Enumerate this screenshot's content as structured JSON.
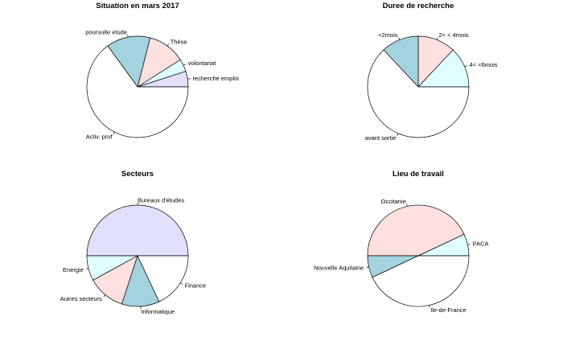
{
  "chart_data": [
    {
      "type": "pie",
      "title": "Situation en mars 2017",
      "slices": [
        {
          "label": "recherche emploi",
          "value": 5,
          "color": "#e0e0fb"
        },
        {
          "label": "volontariat",
          "value": 4,
          "color": "#e0ffff"
        },
        {
          "label": "Thèse",
          "value": 12,
          "color": "#fcdfdf"
        },
        {
          "label": "poursuite etude",
          "value": 14,
          "color": "#a4d3e0"
        },
        {
          "label": "Activ. prof",
          "value": 65,
          "color": "#ffffff"
        }
      ]
    },
    {
      "type": "pie",
      "title": "Duree de recherche",
      "slices": [
        {
          "label": "4< <6mois",
          "value": 13,
          "color": "#e0ffff"
        },
        {
          "label": "2< < 4mois",
          "value": 12,
          "color": "#fcdfdf"
        },
        {
          "label": "<2mois",
          "value": 12,
          "color": "#a4d3e0"
        },
        {
          "label": "avant sortie",
          "value": 63,
          "color": "#ffffff"
        }
      ]
    },
    {
      "type": "pie",
      "title": "Secteurs",
      "slices": [
        {
          "label": "Bureaux d'études",
          "value": 50,
          "color": "#e0e0fb"
        },
        {
          "label": "Energie",
          "value": 8,
          "color": "#e0ffff"
        },
        {
          "label": "Autres secteurs",
          "value": 12,
          "color": "#fcdfdf"
        },
        {
          "label": "Informatique",
          "value": 12,
          "color": "#a4d3e0"
        },
        {
          "label": "Finance",
          "value": 18,
          "color": "#ffffff"
        }
      ]
    },
    {
      "type": "pie",
      "title": "Lieu de travail",
      "slices": [
        {
          "label": "PACA",
          "value": 7,
          "color": "#e0ffff"
        },
        {
          "label": "Occitanie",
          "value": 43,
          "color": "#fcdfdf"
        },
        {
          "label": "Nouvelle Aquitaine",
          "value": 7,
          "color": "#a4d3e0"
        },
        {
          "label": "Ile-de-France",
          "value": 43,
          "color": "#ffffff"
        }
      ]
    }
  ]
}
